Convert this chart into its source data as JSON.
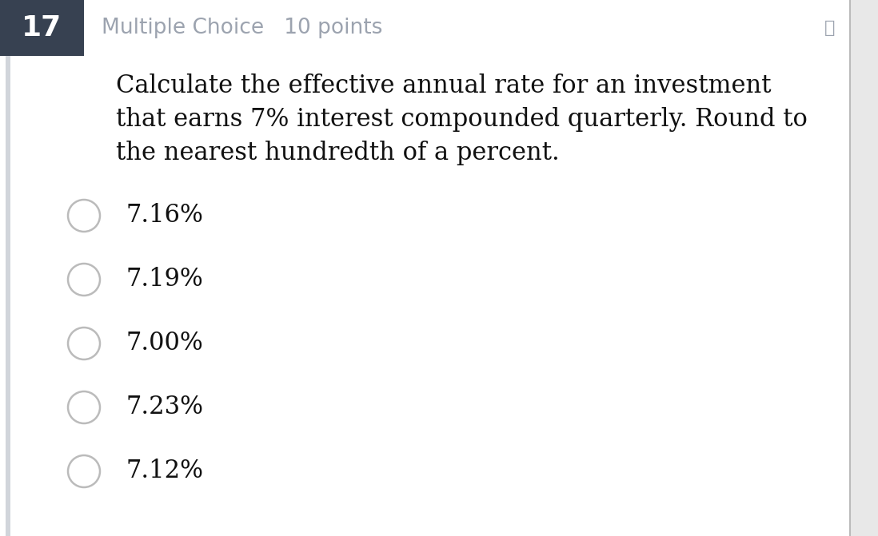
{
  "question_number": "17",
  "question_type": "Multiple Choice",
  "points": "10 points",
  "question_text_lines": [
    "Calculate the effective annual rate for an investment",
    "that earns 7% interest compounded quarterly. Round to",
    "the nearest hundredth of a percent."
  ],
  "choices": [
    "7.16%",
    "7.19%",
    "7.00%",
    "7.23%",
    "7.12%"
  ],
  "outer_bg_color": "#e8e8e8",
  "content_bg_color": "#ffffff",
  "header_bg_color": "#374151",
  "header_text_color": "#ffffff",
  "header_meta_color": "#9ca3af",
  "question_text_color": "#111111",
  "choice_text_color": "#111111",
  "circle_edge_color": "#bbbbbb",
  "circle_fill_color": "#ffffff",
  "left_bar_color": "#d1d5db",
  "right_border_color": "#d1d5db",
  "question_fontsize": 22,
  "choice_fontsize": 22,
  "header_num_fontsize": 26,
  "header_meta_fontsize": 19
}
